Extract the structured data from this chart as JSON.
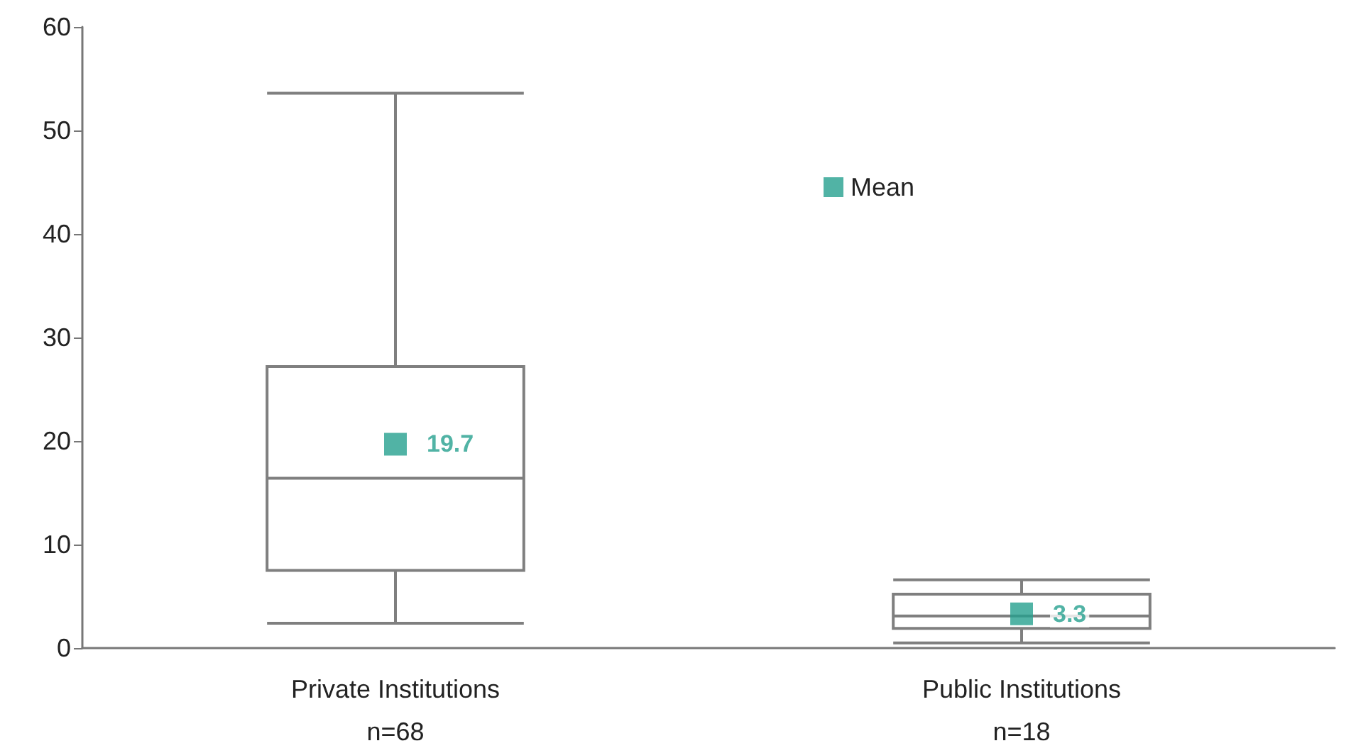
{
  "chart_data": {
    "type": "box",
    "categories": [
      "Private Institutions\nn=68",
      "Public Institutions\nn=18"
    ],
    "series": [
      {
        "type": "box",
        "color": "#7f7f7f",
        "boxes": [
          {
            "low": 2.4,
            "q1": 7.5,
            "median": 16.4,
            "q3": 27.2,
            "high": 53.6
          },
          {
            "low": 0.5,
            "q1": 1.9,
            "median": 3.1,
            "q3": 5.2,
            "high": 6.6
          }
        ]
      },
      {
        "type": "scatter",
        "name": "Mean",
        "color": "#26a08e",
        "x": [
          "Private Institutions\nn=68",
          "Public Institutions\nn=18"
        ],
        "values": [
          19.7,
          3.3
        ],
        "value_labels": [
          "19.7",
          "3.3"
        ]
      }
    ],
    "ylim": [
      0,
      60
    ],
    "yticks": [
      0,
      10,
      20,
      30,
      40,
      50,
      60
    ],
    "grid": false,
    "legend": "top right",
    "marker": "square"
  }
}
